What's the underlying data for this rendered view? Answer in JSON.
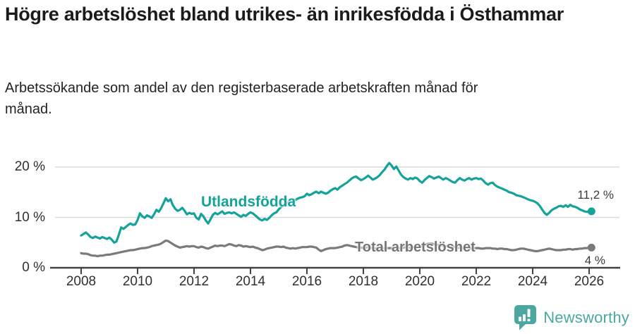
{
  "header": {
    "title": "Högre arbetslöshet bland utrikes- än inrikesfödda i Östhammar",
    "subtitle": "Arbetssökande som andel av den registerbaserade arbetskraften månad för månad."
  },
  "chart_data": {
    "type": "line",
    "title": "Högre arbetslöshet bland utrikes- än inrikesfödda i Östhammar",
    "xlabel": "",
    "ylabel": "",
    "x_unit": "monthly",
    "x_start_year": 2008,
    "points_per_year": 12,
    "x_tick_years": [
      2008,
      2010,
      2012,
      2014,
      2016,
      2018,
      2020,
      2022,
      2024,
      2026
    ],
    "y_ticks": [
      {
        "value": 0,
        "label": "0 %"
      },
      {
        "value": 10,
        "label": "10 %"
      },
      {
        "value": 20,
        "label": "20 %"
      }
    ],
    "ylim": [
      0,
      22
    ],
    "grid": "horizontal",
    "legend_position": "inline-labels",
    "colors": {
      "utlandsfodda": "#14A29B",
      "total": "#7A7A7A",
      "grid": "#DBDBDB",
      "axis": "#424242"
    },
    "series": [
      {
        "name": "Utlandsfödda",
        "color": "#14A29B",
        "end_label": "11,2 %",
        "end_value": 11.2,
        "values": [
          6.4,
          6.7,
          7.0,
          6.6,
          6.1,
          5.9,
          6.2,
          6.0,
          5.8,
          6.1,
          5.9,
          5.7,
          6.0,
          5.6,
          5.0,
          5.2,
          6.5,
          8.0,
          7.7,
          8.1,
          8.5,
          8.8,
          8.5,
          8.6,
          9.5,
          10.8,
          10.2,
          9.9,
          10.4,
          10.2,
          9.9,
          10.6,
          11.5,
          11.1,
          11.8,
          12.8,
          13.8,
          13.2,
          13.6,
          12.4,
          11.7,
          11.3,
          11.5,
          11.9,
          11.3,
          10.6,
          10.9,
          10.7,
          10.8,
          9.9,
          9.6,
          10.7,
          10.2,
          9.4,
          8.8,
          9.6,
          10.5,
          10.9,
          10.6,
          10.9,
          11.2,
          10.7,
          10.9,
          11.0,
          10.8,
          11.0,
          10.7,
          10.4,
          10.1,
          10.5,
          10.3,
          10.7,
          11.0,
          10.8,
          10.4,
          10.0,
          9.6,
          9.4,
          9.7,
          9.5,
          9.9,
          10.4,
          10.8,
          11.0,
          11.6,
          12.0,
          12.4,
          12.7,
          13.0,
          13.3,
          13.6,
          13.4,
          13.7,
          13.9,
          14.0,
          14.2,
          14.7,
          14.4,
          14.6,
          14.9,
          15.1,
          14.8,
          15.1,
          14.9,
          14.7,
          14.9,
          15.3,
          15.6,
          15.8,
          15.5,
          16.0,
          16.3,
          16.6,
          16.9,
          17.3,
          17.7,
          18.0,
          18.1,
          17.7,
          17.4,
          17.6,
          17.9,
          18.3,
          17.9,
          17.5,
          17.7,
          18.0,
          18.4,
          19.0,
          19.5,
          20.2,
          20.8,
          20.3,
          19.6,
          20.1,
          19.3,
          18.5,
          18.0,
          17.7,
          17.5,
          17.8,
          17.6,
          17.9,
          17.7,
          17.2,
          16.9,
          17.4,
          17.8,
          18.2,
          18.0,
          17.7,
          17.9,
          18.1,
          17.8,
          17.5,
          17.8,
          17.6,
          17.3,
          17.0,
          16.9,
          17.4,
          17.8,
          17.5,
          17.3,
          17.6,
          17.8,
          17.5,
          17.7,
          17.8,
          17.6,
          17.7,
          17.3,
          16.8,
          16.5,
          16.8,
          16.9,
          16.4,
          16.1,
          15.9,
          15.7,
          15.5,
          15.3,
          15.0,
          14.9,
          14.7,
          14.4,
          14.3,
          14.2,
          14.0,
          13.8,
          13.6,
          13.4,
          13.3,
          13.1,
          12.8,
          12.3,
          11.6,
          10.9,
          10.5,
          10.9,
          11.4,
          11.7,
          11.9,
          12.2,
          12.3,
          12.1,
          12.4,
          12.1,
          12.5,
          12.2,
          12.1,
          11.9,
          11.6,
          11.4,
          11.2,
          11.1,
          11.1,
          11.2
        ]
      },
      {
        "name": "Total arbetslöshet",
        "color": "#7A7A7A",
        "end_label": "4 %",
        "end_value": 4.0,
        "values": [
          2.9,
          2.8,
          2.8,
          2.7,
          2.5,
          2.4,
          2.4,
          2.3,
          2.4,
          2.4,
          2.5,
          2.6,
          2.6,
          2.7,
          2.8,
          2.9,
          3.0,
          3.1,
          3.2,
          3.3,
          3.4,
          3.5,
          3.5,
          3.6,
          3.7,
          3.8,
          3.9,
          3.9,
          4.0,
          4.1,
          4.3,
          4.4,
          4.5,
          4.6,
          4.8,
          5.1,
          5.4,
          5.3,
          5.0,
          4.7,
          4.4,
          4.2,
          4.0,
          4.1,
          4.2,
          4.3,
          4.2,
          4.3,
          4.3,
          4.1,
          4.0,
          4.2,
          4.1,
          3.9,
          3.8,
          4.0,
          4.2,
          4.4,
          4.3,
          4.4,
          4.4,
          4.3,
          4.5,
          4.7,
          4.6,
          4.4,
          4.3,
          4.5,
          4.4,
          4.2,
          4.3,
          4.2,
          4.1,
          4.2,
          4.0,
          3.9,
          3.7,
          3.5,
          3.6,
          3.8,
          3.9,
          4.0,
          4.1,
          4.2,
          4.2,
          4.1,
          4.2,
          4.0,
          3.9,
          3.8,
          3.9,
          3.8,
          3.9,
          4.0,
          4.1,
          4.1,
          4.1,
          4.2,
          4.2,
          4.1,
          4.0,
          3.6,
          3.3,
          3.5,
          3.7,
          3.8,
          3.9,
          3.9,
          3.9,
          4.0,
          4.1,
          4.2,
          4.4,
          4.5,
          4.4,
          4.3,
          4.2,
          4.1,
          4.0,
          4.0,
          3.9,
          4.0,
          4.1,
          4.0,
          3.9,
          3.8,
          3.9,
          4.0,
          3.9,
          3.8,
          3.9,
          3.9,
          3.9,
          4.0,
          4.0,
          3.9,
          3.9,
          4.0,
          4.1,
          4.0,
          4.0,
          4.1,
          4.1,
          4.2,
          4.2,
          4.3,
          4.5,
          4.7,
          4.8,
          4.8,
          4.7,
          4.6,
          4.5,
          4.4,
          4.3,
          4.3,
          4.3,
          4.2,
          4.2,
          4.1,
          4.0,
          4.0,
          3.9,
          3.9,
          3.8,
          3.8,
          3.9,
          3.9,
          3.9,
          3.9,
          3.8,
          3.8,
          3.9,
          3.9,
          3.9,
          3.8,
          3.8,
          3.7,
          3.8,
          3.8,
          3.7,
          3.7,
          3.6,
          3.5,
          3.5,
          3.6,
          3.7,
          3.8,
          3.8,
          3.7,
          3.6,
          3.5,
          3.4,
          3.3,
          3.3,
          3.4,
          3.5,
          3.6,
          3.7,
          3.8,
          3.7,
          3.6,
          3.5,
          3.5,
          3.5,
          3.6,
          3.6,
          3.7,
          3.7,
          3.6,
          3.7,
          3.7,
          3.8,
          3.8,
          3.9,
          3.9,
          4.0,
          4.0
        ]
      }
    ]
  },
  "footer": {
    "brand": "Newsworthy"
  }
}
